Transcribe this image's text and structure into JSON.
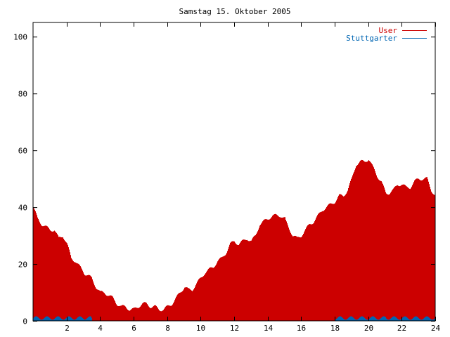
{
  "chart_data": {
    "type": "bar",
    "title": "Samstag 15. Oktober 2005",
    "xlabel": "",
    "ylabel": "",
    "xlim": [
      0,
      24
    ],
    "ylim": [
      0,
      105
    ],
    "grid": false,
    "legend_position": "top-right",
    "x_ticks": [
      {
        "value": 2,
        "label": "2"
      },
      {
        "value": 4,
        "label": "4"
      },
      {
        "value": 6,
        "label": "6"
      },
      {
        "value": 8,
        "label": "8"
      },
      {
        "value": 10,
        "label": "10"
      },
      {
        "value": 12,
        "label": "12"
      },
      {
        "value": 14,
        "label": "14"
      },
      {
        "value": 16,
        "label": "16"
      },
      {
        "value": 18,
        "label": "18"
      },
      {
        "value": 20,
        "label": "20"
      },
      {
        "value": 22,
        "label": "22"
      },
      {
        "value": 24,
        "label": "24"
      }
    ],
    "y_ticks": [
      {
        "value": 0,
        "label": "0"
      },
      {
        "value": 20,
        "label": "20"
      },
      {
        "value": 40,
        "label": "40"
      },
      {
        "value": 60,
        "label": "60"
      },
      {
        "value": 80,
        "label": "80"
      },
      {
        "value": 100,
        "label": "100"
      }
    ],
    "series": [
      {
        "name": "User",
        "color": "#cc0000",
        "style": "impulses",
        "points": [
          [
            0.0,
            40
          ],
          [
            0.25,
            36
          ],
          [
            0.5,
            34
          ],
          [
            0.75,
            33
          ],
          [
            1.0,
            32
          ],
          [
            1.25,
            32
          ],
          [
            1.5,
            29
          ],
          [
            1.75,
            30
          ],
          [
            2.0,
            27
          ],
          [
            2.25,
            22
          ],
          [
            2.5,
            21
          ],
          [
            2.75,
            19
          ],
          [
            3.0,
            17
          ],
          [
            3.25,
            16
          ],
          [
            3.5,
            15
          ],
          [
            3.75,
            12
          ],
          [
            4.0,
            10
          ],
          [
            4.25,
            10
          ],
          [
            4.5,
            9
          ],
          [
            4.75,
            8
          ],
          [
            5.0,
            6
          ],
          [
            5.25,
            5
          ],
          [
            5.5,
            5
          ],
          [
            5.75,
            4
          ],
          [
            6.0,
            4
          ],
          [
            6.25,
            5
          ],
          [
            6.5,
            6
          ],
          [
            6.75,
            6
          ],
          [
            7.0,
            5
          ],
          [
            7.25,
            5
          ],
          [
            7.5,
            4
          ],
          [
            7.75,
            4
          ],
          [
            8.0,
            5
          ],
          [
            8.25,
            6
          ],
          [
            8.5,
            8
          ],
          [
            8.75,
            10
          ],
          [
            9.0,
            12
          ],
          [
            9.25,
            11
          ],
          [
            9.5,
            11
          ],
          [
            9.75,
            13
          ],
          [
            10.0,
            15
          ],
          [
            10.25,
            17
          ],
          [
            10.5,
            18
          ],
          [
            10.75,
            19
          ],
          [
            11.0,
            21
          ],
          [
            11.25,
            22
          ],
          [
            11.5,
            24
          ],
          [
            11.75,
            27
          ],
          [
            12.0,
            28
          ],
          [
            12.25,
            27
          ],
          [
            12.5,
            28
          ],
          [
            12.75,
            29
          ],
          [
            13.0,
            28
          ],
          [
            13.25,
            30
          ],
          [
            13.5,
            34
          ],
          [
            13.75,
            35
          ],
          [
            14.0,
            36
          ],
          [
            14.25,
            37
          ],
          [
            14.5,
            37
          ],
          [
            14.75,
            37
          ],
          [
            15.0,
            36
          ],
          [
            15.25,
            33
          ],
          [
            15.5,
            30
          ],
          [
            15.75,
            29
          ],
          [
            16.0,
            30
          ],
          [
            16.25,
            32
          ],
          [
            16.5,
            34
          ],
          [
            16.75,
            35
          ],
          [
            17.0,
            37
          ],
          [
            17.25,
            39
          ],
          [
            17.5,
            40
          ],
          [
            17.75,
            41
          ],
          [
            18.0,
            42
          ],
          [
            18.25,
            44
          ],
          [
            18.5,
            44
          ],
          [
            18.75,
            46
          ],
          [
            19.0,
            50
          ],
          [
            19.25,
            55
          ],
          [
            19.5,
            56
          ],
          [
            19.75,
            56
          ],
          [
            20.0,
            57
          ],
          [
            20.25,
            54
          ],
          [
            20.5,
            51
          ],
          [
            20.75,
            49
          ],
          [
            21.0,
            45
          ],
          [
            21.25,
            45
          ],
          [
            21.5,
            46
          ],
          [
            21.75,
            48
          ],
          [
            22.0,
            48
          ],
          [
            22.25,
            47
          ],
          [
            22.5,
            47
          ],
          [
            22.75,
            49
          ],
          [
            23.0,
            50
          ],
          [
            23.25,
            50
          ],
          [
            23.5,
            50
          ],
          [
            23.75,
            46
          ],
          [
            24.0,
            44
          ]
        ]
      },
      {
        "name": "Stuttgarter",
        "color": "#0066b3",
        "style": "impulses",
        "points": [
          [
            0.0,
            1
          ],
          [
            0.5,
            1
          ],
          [
            1.0,
            1
          ],
          [
            1.5,
            1
          ],
          [
            2.0,
            1
          ],
          [
            2.5,
            1
          ],
          [
            3.0,
            1
          ],
          [
            3.5,
            1
          ],
          [
            18.0,
            1
          ],
          [
            18.5,
            1
          ],
          [
            19.0,
            1
          ],
          [
            19.5,
            1
          ],
          [
            20.0,
            1
          ],
          [
            20.5,
            1
          ],
          [
            21.0,
            1
          ],
          [
            21.5,
            1
          ],
          [
            22.0,
            1
          ],
          [
            22.5,
            1
          ],
          [
            23.0,
            1
          ],
          [
            23.5,
            1
          ],
          [
            24.0,
            1
          ]
        ]
      }
    ]
  }
}
